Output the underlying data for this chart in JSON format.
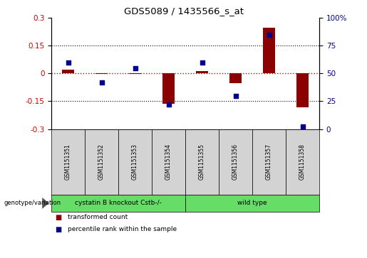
{
  "title": "GDS5089 / 1435566_s_at",
  "samples": [
    "GSM1151351",
    "GSM1151352",
    "GSM1151353",
    "GSM1151354",
    "GSM1151355",
    "GSM1151356",
    "GSM1151357",
    "GSM1151358"
  ],
  "transformed_count": [
    0.022,
    -0.002,
    -0.003,
    -0.163,
    0.012,
    -0.052,
    0.248,
    -0.183
  ],
  "percentile_rank": [
    60,
    42,
    55,
    22,
    60,
    30,
    85,
    2
  ],
  "ylim": [
    -0.3,
    0.3
  ],
  "y2lim": [
    0,
    100
  ],
  "yticks": [
    -0.3,
    -0.15,
    0.0,
    0.15,
    0.3
  ],
  "y2ticks": [
    0,
    25,
    50,
    75,
    100
  ],
  "ytick_labels": [
    "-0.3",
    "-0.15",
    "0",
    "0.15",
    "0.3"
  ],
  "y2tick_labels": [
    "0",
    "25",
    "50",
    "75",
    "100%"
  ],
  "bar_color": "#8B0000",
  "dot_color": "#00008B",
  "hline_color": "#CC0000",
  "label_box_color": "#D3D3D3",
  "group1_color": "#66DD66",
  "group2_color": "#66DD66",
  "group1_label": "cystatin B knockout Cstb-/-",
  "group2_label": "wild type",
  "genotype_label": "genotype/variation",
  "bar_width": 0.35,
  "dot_size": 22,
  "legend_items": [
    {
      "label": "transformed count",
      "color": "#8B0000"
    },
    {
      "label": "percentile rank within the sample",
      "color": "#00008B"
    }
  ]
}
